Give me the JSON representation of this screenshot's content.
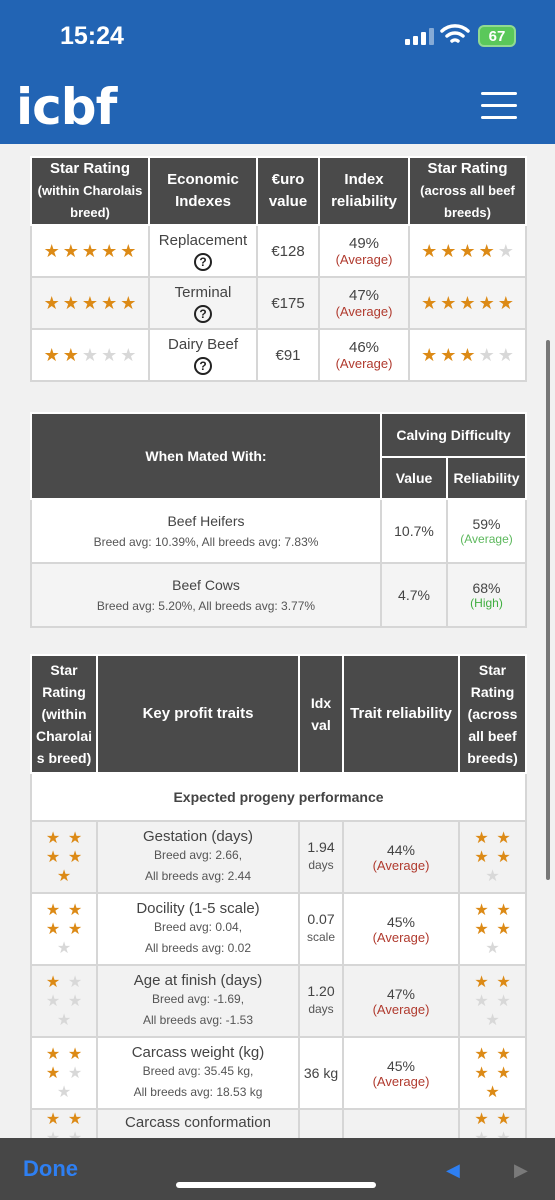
{
  "status": {
    "time": "15:24",
    "battery": "67"
  },
  "header": {
    "logo": "icbf"
  },
  "table1": {
    "headers": [
      "Star Rating",
      "(within Charolais breed)",
      "Economic Indexes",
      "€uro value",
      "Index reliability",
      "Star Rating",
      "(across all beef breeds)"
    ],
    "rows": [
      {
        "name": "Replacement",
        "value": "€128",
        "reliability": "49%",
        "level": "(Average)",
        "stars_within": 5,
        "stars_all": 4
      },
      {
        "name": "Terminal",
        "value": "€175",
        "reliability": "47%",
        "level": "(Average)",
        "stars_within": 5,
        "stars_all": 5
      },
      {
        "name": "Dairy Beef",
        "value": "€91",
        "reliability": "46%",
        "level": "(Average)",
        "stars_within": 2,
        "stars_all": 3
      }
    ],
    "help_glyph": "?"
  },
  "table2": {
    "header_main": "When Mated With:",
    "header_group": "Calving Difficulty",
    "header_value": "Value",
    "header_reliability": "Reliability",
    "rows": [
      {
        "name": "Beef Heifers",
        "sub": "Breed avg: 10.39%, All breeds avg: 7.83%",
        "value": "10.7%",
        "reliability": "59%",
        "level": "(Average)"
      },
      {
        "name": "Beef Cows",
        "sub": "Breed avg: 5.20%, All breeds avg: 3.77%",
        "value": "4.7%",
        "reliability": "68%",
        "level": "(High)"
      }
    ]
  },
  "table3": {
    "h_star_within": "Star Rating (within Charolai s breed)",
    "h_traits": "Key profit traits",
    "h_idx": "Idx val",
    "h_rel": "Trait reliability",
    "h_star_all": "Star Rating (across all beef breeds)",
    "section": "Expected progeny performance",
    "rows": [
      {
        "name": "Gestation (days)",
        "sub1": "Breed avg: 2.66,",
        "sub2": "All breeds avg: 2.44",
        "idx": "1.94",
        "unit": "days",
        "reliability": "44%",
        "level": "(Average)",
        "stars_within": 5,
        "stars_all": 4
      },
      {
        "name": "Docility (1-5 scale)",
        "sub1": "Breed avg: 0.04,",
        "sub2": "All breeds avg: 0.02",
        "idx": "0.07",
        "unit": "scale",
        "reliability": "45%",
        "level": "(Average)",
        "stars_within": 4,
        "stars_all": 4
      },
      {
        "name": "Age at finish (days)",
        "sub1": "Breed avg: -1.69,",
        "sub2": "All breeds avg: -1.53",
        "idx": "1.20",
        "unit": "days",
        "reliability": "47%",
        "level": "(Average)",
        "stars_within": 1,
        "stars_all": 2
      },
      {
        "name": "Carcass weight (kg)",
        "sub1": "Breed avg: 35.45 kg,",
        "sub2": "All breeds avg: 18.53 kg",
        "idx": "36 kg",
        "unit": "",
        "reliability": "45%",
        "level": "(Average)",
        "stars_within": 3,
        "stars_all": 5
      },
      {
        "name": "Carcass conformation",
        "sub1": "",
        "sub2": "",
        "idx": "",
        "unit": "",
        "reliability": "",
        "level": "",
        "stars_within": 2,
        "stars_all": 2
      }
    ]
  },
  "bottom": {
    "done": "Done",
    "prev": "◀",
    "next": "▶"
  },
  "colors": {
    "blue": "#2264b4",
    "star": "#dc8a16",
    "header_dark": "#4a4a4a"
  }
}
